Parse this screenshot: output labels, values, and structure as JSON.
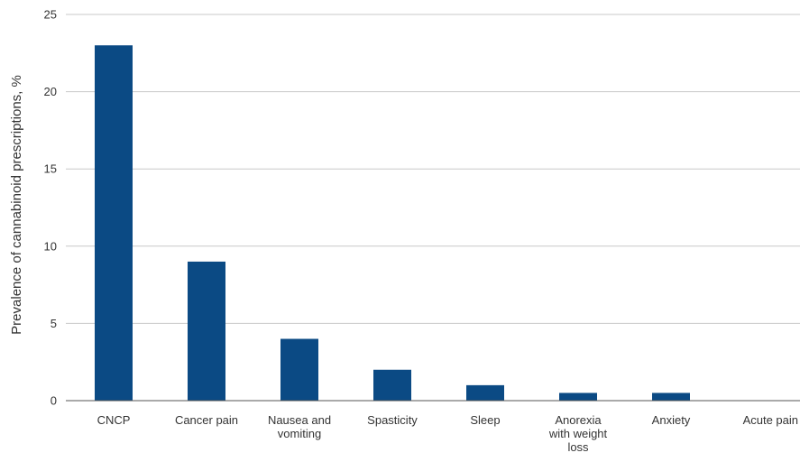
{
  "chart_data": {
    "type": "bar",
    "categories": [
      [
        "CNCP"
      ],
      [
        "Cancer pain"
      ],
      [
        "Nausea and",
        "vomiting"
      ],
      [
        "Spasticity"
      ],
      [
        "Sleep"
      ],
      [
        "Anorexia",
        "with weight",
        "loss"
      ],
      [
        "Anxiety"
      ],
      [
        "Acute pain"
      ]
    ],
    "values": [
      23,
      9,
      4,
      2,
      1,
      0.5,
      0.5,
      0
    ],
    "ylabel": "Prevalence of cannabinoid prescriptions, %",
    "yticks": [
      0,
      5,
      10,
      15,
      20,
      25
    ],
    "ylim": [
      0,
      25
    ],
    "grid": true,
    "bar_color": "#0b4a84"
  }
}
